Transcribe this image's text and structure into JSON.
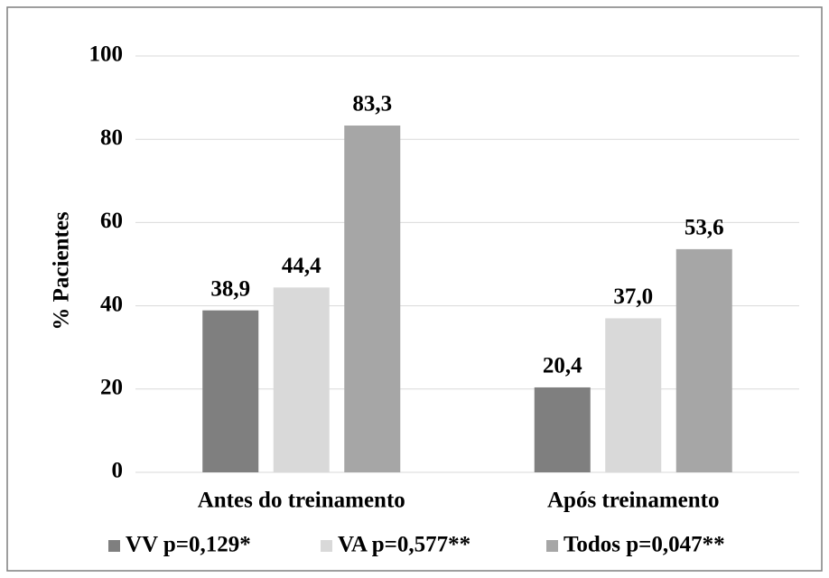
{
  "chart_data": {
    "type": "bar",
    "y_label": "% Pacientes",
    "categories": [
      "Antes do treinamento",
      "Após treinamento"
    ],
    "series": [
      {
        "name": "VV p=0,129*",
        "color": "#7f7f7f",
        "values": [
          38.9,
          20.4
        ],
        "value_labels": [
          "38,9",
          "20,4"
        ]
      },
      {
        "name": "VA p=0,577**",
        "color": "#d9d9d9",
        "values": [
          44.4,
          37.0
        ],
        "value_labels": [
          "44,4",
          "37,0"
        ]
      },
      {
        "name": "Todos p=0,047**",
        "color": "#a6a6a6",
        "values": [
          83.3,
          53.6
        ],
        "value_labels": [
          "83,3",
          "53,6"
        ]
      }
    ],
    "ylim": [
      0,
      100
    ],
    "yticks": [
      0,
      20,
      40,
      60,
      80,
      100
    ],
    "grid": true,
    "legend": "bottom"
  }
}
